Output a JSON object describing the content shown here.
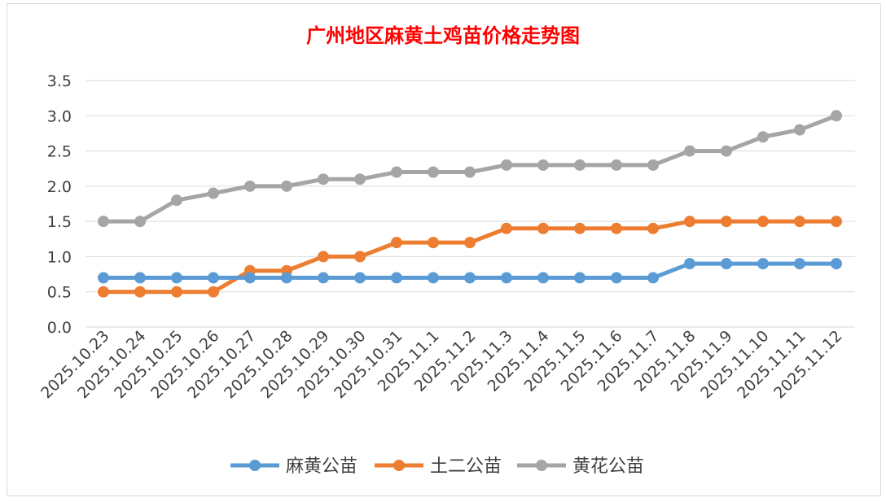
{
  "chart_data": {
    "type": "line",
    "title": "广州地区麻黄土鸡苗价格走势图",
    "xlabel": "",
    "ylabel": "",
    "ylim": [
      0,
      3.5
    ],
    "yticks": [
      "0.0",
      "0.5",
      "1.0",
      "1.5",
      "2.0",
      "2.5",
      "3.0",
      "3.5"
    ],
    "grid": true,
    "legend_position": "bottom",
    "categories": [
      "2025.10.23",
      "2025.10.24",
      "2025.10.25",
      "2025.10.26",
      "2025.10.27",
      "2025.10.28",
      "2025.10.29",
      "2025.10.30",
      "2025.10.31",
      "2025.11.1",
      "2025.11.2",
      "2025.11.3",
      "2025.11.4",
      "2025.11.5",
      "2025.11.6",
      "2025.11.7",
      "2025.11.8",
      "2025.11.9",
      "2025.11.10",
      "2025.11.11",
      "2025.11.12"
    ],
    "series": [
      {
        "name": "麻黄公苗",
        "color": "#5b9bd5",
        "values": [
          0.7,
          0.7,
          0.7,
          0.7,
          0.7,
          0.7,
          0.7,
          0.7,
          0.7,
          0.7,
          0.7,
          0.7,
          0.7,
          0.7,
          0.7,
          0.7,
          0.9,
          0.9,
          0.9,
          0.9,
          0.9
        ]
      },
      {
        "name": "土二公苗",
        "color": "#ed7d31",
        "values": [
          0.5,
          0.5,
          0.5,
          0.5,
          0.8,
          0.8,
          1.0,
          1.0,
          1.2,
          1.2,
          1.2,
          1.4,
          1.4,
          1.4,
          1.4,
          1.4,
          1.5,
          1.5,
          1.5,
          1.5,
          1.5
        ]
      },
      {
        "name": "黄花公苗",
        "color": "#a5a5a5",
        "values": [
          1.5,
          1.5,
          1.8,
          1.9,
          2.0,
          2.0,
          2.1,
          2.1,
          2.2,
          2.2,
          2.2,
          2.3,
          2.3,
          2.3,
          2.3,
          2.3,
          2.5,
          2.5,
          2.7,
          2.8,
          3.0
        ]
      }
    ],
    "title_color": "#ff0000"
  }
}
